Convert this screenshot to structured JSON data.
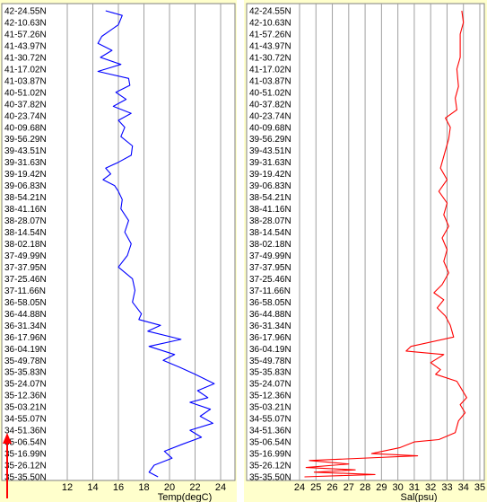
{
  "colors": {
    "panel_background": "#FFFFCC",
    "plot_background": "#FFFFFF",
    "grid": "#A0A0A0",
    "temp_line": "#0000FF",
    "sal_line": "#FF0000",
    "direction_arrow": "#FF0000"
  },
  "indicator": {
    "icon": "up-arrow-icon",
    "meaning": "direction-of-travel"
  },
  "chart_data": [
    {
      "type": "line",
      "xlabel": "Temp(degC)",
      "ylabel": "",
      "xlim": [
        12,
        25
      ],
      "xticks": [
        "12",
        "14",
        "16",
        "18",
        "20",
        "22",
        "24"
      ],
      "grid": true,
      "yticks": [
        "42-24.55N",
        "42-10.63N",
        "41-57.26N",
        "41-43.97N",
        "41-30.72N",
        "41-17.02N",
        "41-03.87N",
        "40-51.02N",
        "40-37.82N",
        "40-23.74N",
        "40-09.68N",
        "39-56.29N",
        "39-43.51N",
        "39-31.63N",
        "39-19.42N",
        "39-06.83N",
        "38-54.21N",
        "38-41.16N",
        "38-28.07N",
        "38-14.54N",
        "38-02.18N",
        "37-49.99N",
        "37-37.95N",
        "37-25.46N",
        "37-11.66N",
        "36-58.05N",
        "36-44.88N",
        "36-31.34N",
        "36-17.96N",
        "36-04.19N",
        "35-49.78N",
        "35-35.83N",
        "35-24.07N",
        "35-12.36N",
        "35-03.21N",
        "34-55.07N",
        "34-51.36N",
        "35-06.54N",
        "35-16.99N",
        "35-26.12N",
        "35-35.50N"
      ],
      "series": [
        {
          "x": [
            [
              15.0,
              0
            ],
            [
              16.3,
              0.4
            ],
            [
              16.0,
              1.2
            ],
            [
              14.7,
              2.2
            ],
            [
              14.4,
              2.8
            ],
            [
              15.5,
              3.4
            ],
            [
              14.6,
              4.0
            ],
            [
              16.2,
              4.6
            ],
            [
              14.4,
              5.2
            ],
            [
              16.8,
              5.8
            ],
            [
              16.9,
              6.4
            ],
            [
              15.8,
              7.0
            ],
            [
              16.6,
              7.6
            ],
            [
              15.6,
              8.2
            ],
            [
              17.0,
              8.8
            ],
            [
              16.0,
              9.4
            ],
            [
              16.5,
              10.0
            ],
            [
              16.2,
              10.8
            ],
            [
              17.1,
              11.6
            ],
            [
              17.0,
              12.4
            ],
            [
              16.0,
              13.0
            ],
            [
              15.0,
              13.5
            ],
            [
              15.4,
              14.0
            ],
            [
              14.8,
              14.5
            ],
            [
              15.7,
              15.0
            ],
            [
              16.0,
              15.5
            ],
            [
              16.3,
              16.2
            ],
            [
              16.2,
              17.0
            ],
            [
              16.8,
              18.0
            ],
            [
              16.5,
              19.0
            ],
            [
              17.0,
              20.0
            ],
            [
              16.7,
              21.0
            ],
            [
              16.0,
              22.0
            ],
            [
              17.1,
              23.0
            ],
            [
              17.3,
              24.0
            ],
            [
              17.1,
              25.0
            ],
            [
              17.8,
              26.0
            ],
            [
              17.6,
              26.5
            ],
            [
              19.3,
              27.0
            ],
            [
              18.3,
              27.5
            ],
            [
              20.9,
              28.2
            ],
            [
              18.4,
              28.8
            ],
            [
              20.4,
              29.5
            ],
            [
              19.5,
              30.0
            ],
            [
              20.8,
              30.6
            ],
            [
              22.0,
              31.2
            ],
            [
              23.5,
              32.0
            ],
            [
              22.2,
              32.6
            ],
            [
              23.0,
              33.2
            ],
            [
              21.6,
              33.6
            ],
            [
              23.2,
              34.2
            ],
            [
              22.4,
              34.8
            ],
            [
              23.4,
              35.4
            ],
            [
              21.6,
              36.0
            ],
            [
              22.5,
              36.6
            ],
            [
              21.0,
              37.2
            ],
            [
              19.6,
              37.8
            ],
            [
              20.2,
              38.4
            ],
            [
              18.8,
              39.0
            ],
            [
              18.4,
              39.6
            ],
            [
              19.1,
              40.0
            ]
          ],
          "note": ""
        }
      ]
    },
    {
      "type": "line",
      "xlabel": "Sal(psu)",
      "ylabel": "",
      "xlim": [
        24,
        35
      ],
      "xticks": [
        "24",
        "25",
        "26",
        "27",
        "28",
        "29",
        "30",
        "31",
        "32",
        "33",
        "34",
        "35"
      ],
      "grid": true,
      "yticks": [
        "42-24.55N",
        "42-10.63N",
        "41-57.26N",
        "41-43.97N",
        "41-30.72N",
        "41-17.02N",
        "41-03.87N",
        "40-51.02N",
        "40-37.82N",
        "40-23.74N",
        "40-09.68N",
        "39-56.29N",
        "39-43.51N",
        "39-31.63N",
        "39-19.42N",
        "39-06.83N",
        "38-54.21N",
        "38-41.16N",
        "38-28.07N",
        "38-14.54N",
        "38-02.18N",
        "37-49.99N",
        "37-37.95N",
        "37-25.46N",
        "37-11.66N",
        "36-58.05N",
        "36-44.88N",
        "36-31.34N",
        "36-17.96N",
        "36-04.19N",
        "35-49.78N",
        "35-35.83N",
        "35-24.07N",
        "35-12.36N",
        "35-03.21N",
        "34-55.07N",
        "34-51.36N",
        "35-06.54N",
        "35-16.99N",
        "35-26.12N",
        "35-35.50N"
      ],
      "series": [
        {
          "x": [
            [
              33.9,
              0
            ],
            [
              34.0,
              1.0
            ],
            [
              33.8,
              2.0
            ],
            [
              33.8,
              4.0
            ],
            [
              33.6,
              5.0
            ],
            [
              33.7,
              6.5
            ],
            [
              33.5,
              7.5
            ],
            [
              33.6,
              8.5
            ],
            [
              32.9,
              9.2
            ],
            [
              33.2,
              10.0
            ],
            [
              33.1,
              11.0
            ],
            [
              32.9,
              12.0
            ],
            [
              32.6,
              13.5
            ],
            [
              33.0,
              14.5
            ],
            [
              32.5,
              15.5
            ],
            [
              33.0,
              16.5
            ],
            [
              32.8,
              17.5
            ],
            [
              33.1,
              18.5
            ],
            [
              32.7,
              19.5
            ],
            [
              33.0,
              20.5
            ],
            [
              32.8,
              21.5
            ],
            [
              33.1,
              22.5
            ],
            [
              32.7,
              23.5
            ],
            [
              32.2,
              24.2
            ],
            [
              32.8,
              24.8
            ],
            [
              32.4,
              25.5
            ],
            [
              32.9,
              26.2
            ],
            [
              33.2,
              27.0
            ],
            [
              33.4,
              28.0
            ],
            [
              30.8,
              28.8
            ],
            [
              30.5,
              29.2
            ],
            [
              32.8,
              29.5
            ],
            [
              32.0,
              30.2
            ],
            [
              32.6,
              30.8
            ],
            [
              32.3,
              31.2
            ],
            [
              33.6,
              31.8
            ],
            [
              33.9,
              32.5
            ],
            [
              34.2,
              33.2
            ],
            [
              33.8,
              33.8
            ],
            [
              34.1,
              34.5
            ],
            [
              33.7,
              35.2
            ],
            [
              33.5,
              36.2
            ],
            [
              32.5,
              36.8
            ],
            [
              31.0,
              37.0
            ],
            [
              30.1,
              37.5
            ],
            [
              28.4,
              38.0
            ],
            [
              31.2,
              38.2
            ],
            [
              24.6,
              38.6
            ],
            [
              27.0,
              38.9
            ],
            [
              24.4,
              39.2
            ],
            [
              27.4,
              39.4
            ],
            [
              24.9,
              39.6
            ],
            [
              28.6,
              39.8
            ],
            [
              24.3,
              40.0
            ]
          ],
          "note": ""
        }
      ]
    }
  ]
}
